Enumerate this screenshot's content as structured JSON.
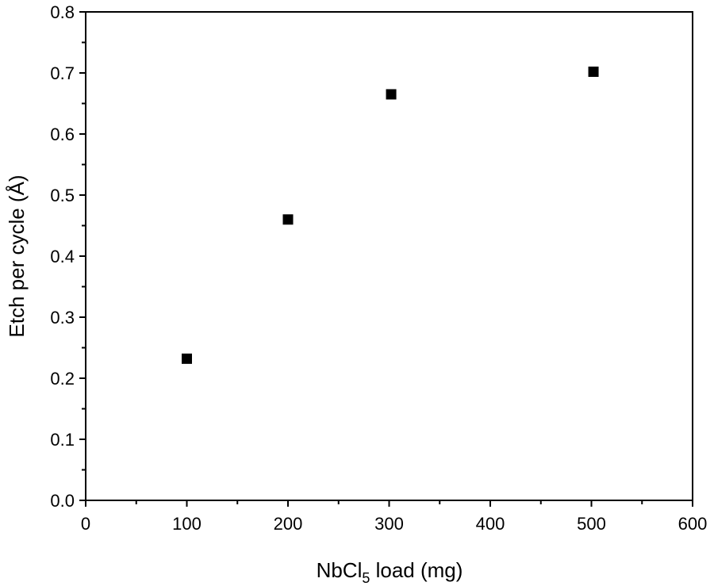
{
  "chart_data": {
    "type": "scatter",
    "title": "",
    "xlabel": "NbCl",
    "xlabel_subscript": "5",
    "xlabel_suffix": " load (mg)",
    "ylabel": "Etch per cycle (Å)",
    "xlim": [
      0,
      600
    ],
    "ylim": [
      0.0,
      0.8
    ],
    "x_major_ticks": [
      0,
      100,
      200,
      300,
      400,
      500,
      600
    ],
    "x_tick_labels": [
      "0",
      "100",
      "200",
      "300",
      "400",
      "500",
      "600"
    ],
    "x_minor_ticks": [
      50,
      150,
      250,
      350,
      450,
      550
    ],
    "y_major_ticks": [
      0.0,
      0.1,
      0.2,
      0.3,
      0.4,
      0.5,
      0.6,
      0.7,
      0.8
    ],
    "y_tick_labels": [
      "0.0",
      "0.1",
      "0.2",
      "0.3",
      "0.4",
      "0.5",
      "0.6",
      "0.7",
      "0.8"
    ],
    "y_minor_ticks": [
      0.05,
      0.15,
      0.25,
      0.35,
      0.45,
      0.55,
      0.65,
      0.75
    ],
    "grid": false,
    "marker": "square",
    "marker_color": "#000000",
    "series": [
      {
        "x": [
          100,
          200,
          302,
          502
        ],
        "y": [
          0.232,
          0.46,
          0.665,
          0.702
        ]
      }
    ]
  }
}
